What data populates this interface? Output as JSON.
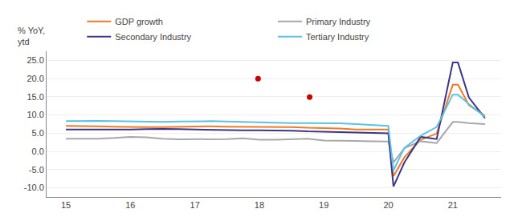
{
  "chart_data": {
    "type": "line",
    "ylabel": "% YoY,\nytd",
    "x": [
      15.0,
      15.25,
      15.5,
      15.75,
      16.0,
      16.25,
      16.5,
      16.75,
      17.0,
      17.25,
      17.5,
      17.75,
      18.0,
      18.25,
      18.5,
      18.75,
      19.0,
      19.25,
      19.5,
      19.75,
      20.0,
      20.08,
      20.25,
      20.5,
      20.75,
      21.0,
      21.08,
      21.25,
      21.5
    ],
    "series": [
      {
        "name": "GDP growth",
        "color": "#F47920",
        "values": [
          7.0,
          7.0,
          6.9,
          6.8,
          6.7,
          6.7,
          6.7,
          6.8,
          6.9,
          6.9,
          6.8,
          6.8,
          6.8,
          6.8,
          6.7,
          6.5,
          6.4,
          6.3,
          6.0,
          6.0,
          6.0,
          -6.8,
          -1.6,
          3.2,
          4.9,
          18.3,
          18.3,
          12.7,
          9.8
        ]
      },
      {
        "name": "Primary Industry",
        "color": "#A8A8A8",
        "values": [
          3.5,
          3.5,
          3.5,
          3.7,
          4.0,
          3.9,
          3.5,
          3.3,
          3.3,
          3.3,
          3.4,
          3.6,
          3.2,
          3.2,
          3.3,
          3.5,
          3.0,
          3.0,
          2.9,
          2.8,
          2.7,
          -3.0,
          0.9,
          2.8,
          2.3,
          8.1,
          8.1,
          7.8,
          7.5
        ]
      },
      {
        "name": "Secondary Industry",
        "color": "#3B3688",
        "values": [
          6.0,
          6.0,
          5.9,
          5.9,
          6.0,
          6.1,
          6.2,
          6.1,
          6.0,
          6.0,
          5.9,
          5.8,
          5.8,
          5.8,
          5.7,
          5.5,
          5.4,
          5.3,
          5.2,
          5.1,
          5.0,
          -9.6,
          -3.0,
          4.0,
          3.4,
          24.4,
          24.4,
          14.8,
          9.1
        ]
      },
      {
        "name": "Tertiary Industry",
        "color": "#5BC2E7",
        "values": [
          8.3,
          8.4,
          8.4,
          8.3,
          8.2,
          8.1,
          8.1,
          8.2,
          8.3,
          8.3,
          8.2,
          8.1,
          7.9,
          7.8,
          7.8,
          7.8,
          7.8,
          7.7,
          7.5,
          7.2,
          7.0,
          -5.2,
          1.0,
          4.3,
          6.7,
          15.6,
          15.6,
          13.0,
          9.5
        ]
      },
      {
        "type": "scatter",
        "marker": "circle",
        "color": "#cc0000",
        "x": [
          17.98,
          18.78
        ],
        "values": [
          20.0,
          14.9
        ]
      }
    ],
    "xlim": [
      14.7,
      21.75
    ],
    "xticks": [
      15,
      16,
      17,
      18,
      19,
      20,
      21
    ],
    "ylim": [
      -12.5,
      27.5
    ],
    "yticks": [
      {
        "value": -10.0,
        "label": "-10.0"
      },
      {
        "value": -5.0,
        "label": "-5.0"
      },
      {
        "value": 0.0,
        "label": "0.0"
      },
      {
        "value": 5.0,
        "label": "5.0"
      },
      {
        "value": 10.0,
        "label": "10.0"
      },
      {
        "value": 15.0,
        "label": "15.0"
      },
      {
        "value": 20.0,
        "label": "20.0"
      },
      {
        "value": 25.0,
        "label": "25.0"
      }
    ],
    "grid": "y",
    "legend": "upper left"
  }
}
